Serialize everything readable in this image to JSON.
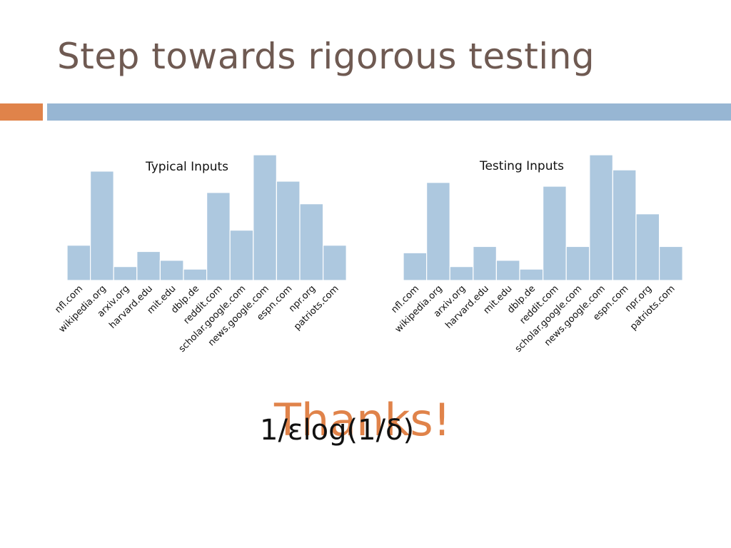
{
  "slide": {
    "title": "Step towards rigorous testing",
    "thanks": "Thanks!",
    "formula": "1/εlog(1/δ)"
  },
  "colors": {
    "title": "#6f5a52",
    "accent_orange": "#e0834a",
    "accent_blue": "#97b6d3",
    "bar_fill": "#adc8df"
  },
  "chart_data": [
    {
      "type": "bar",
      "title": "Typical Inputs",
      "categories": [
        "nfl.com",
        "wikipedia.org",
        "arxiv.org",
        "harvard.edu",
        "mit.edu",
        "dblp.de",
        "reddit.com",
        "scholar.google.com",
        "news.google.com",
        "espn.com",
        "npr.org",
        "patriots.com"
      ],
      "values": [
        0.28,
        0.87,
        0.11,
        0.23,
        0.16,
        0.09,
        0.7,
        0.4,
        1.0,
        0.79,
        0.61,
        0.28
      ],
      "xlabel": "",
      "ylabel": "",
      "ylim": [
        0,
        1
      ],
      "grid": false
    },
    {
      "type": "bar",
      "title": "Testing Inputs",
      "categories": [
        "nfl.com",
        "wikipedia.org",
        "arxiv.org",
        "harvard.edu",
        "mit.edu",
        "dblp.de",
        "reddit.com",
        "scholar.google.com",
        "news.google.com",
        "espn.com",
        "npr.org",
        "patriots.com"
      ],
      "values": [
        0.22,
        0.78,
        0.11,
        0.27,
        0.16,
        0.09,
        0.75,
        0.27,
        1.0,
        0.88,
        0.53,
        0.27
      ],
      "xlabel": "",
      "ylabel": "",
      "ylim": [
        0,
        1
      ],
      "grid": false
    }
  ]
}
